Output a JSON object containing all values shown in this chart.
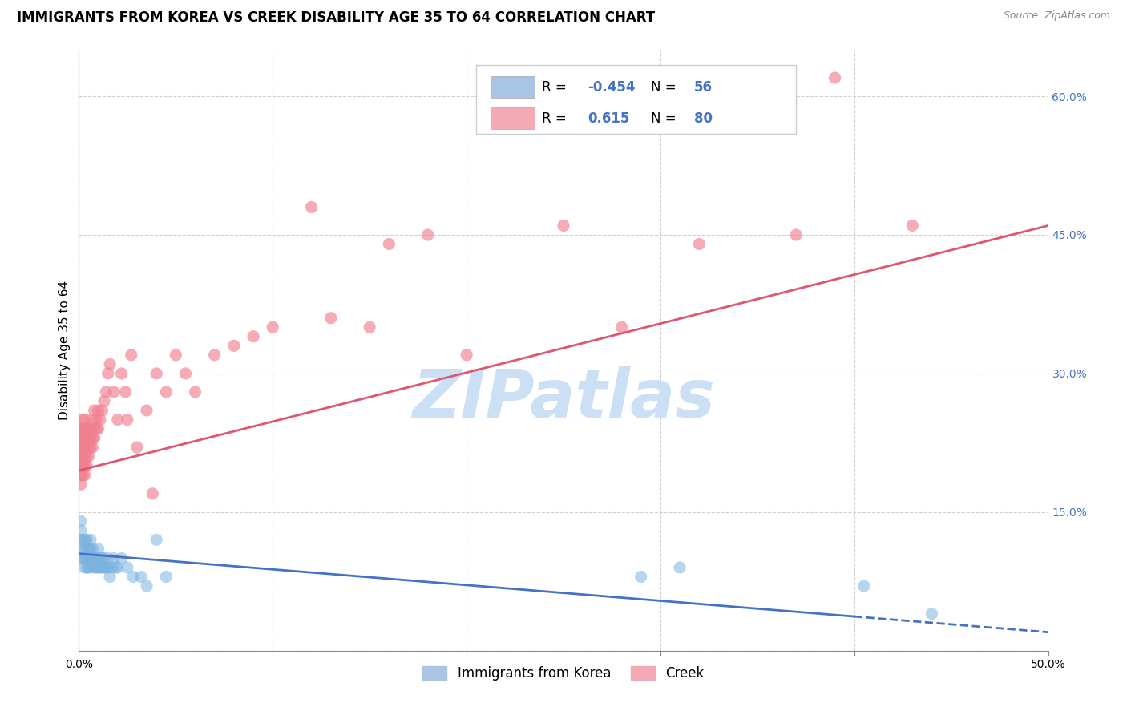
{
  "title": "IMMIGRANTS FROM KOREA VS CREEK DISABILITY AGE 35 TO 64 CORRELATION CHART",
  "source": "Source: ZipAtlas.com",
  "ylabel": "Disability Age 35 to 64",
  "x_ticks": [
    0.0,
    0.1,
    0.2,
    0.3,
    0.4,
    0.5
  ],
  "x_tick_labels": [
    "0.0%",
    "",
    "",
    "",
    "",
    "50.0%"
  ],
  "y_ticks": [
    0.0,
    0.15,
    0.3,
    0.45,
    0.6
  ],
  "y_tick_labels_left": [
    "",
    "",
    "",
    "",
    ""
  ],
  "y_tick_labels_right": [
    "",
    "15.0%",
    "30.0%",
    "45.0%",
    "60.0%"
  ],
  "legend_top": [
    {
      "label": "Immigrants from Korea",
      "color": "#aac4e4",
      "r": "-0.454",
      "n": "56"
    },
    {
      "label": "Creek",
      "color": "#f4aab4",
      "r": "0.615",
      "n": "80"
    }
  ],
  "legend_bottom": [
    "Immigrants from Korea",
    "Creek"
  ],
  "watermark": "ZIPatlas",
  "blue_scatter_x": [
    0.001,
    0.001,
    0.001,
    0.001,
    0.002,
    0.002,
    0.002,
    0.003,
    0.003,
    0.003,
    0.003,
    0.004,
    0.004,
    0.004,
    0.004,
    0.005,
    0.005,
    0.005,
    0.006,
    0.006,
    0.006,
    0.006,
    0.007,
    0.007,
    0.008,
    0.008,
    0.009,
    0.009,
    0.01,
    0.01,
    0.01,
    0.011,
    0.011,
    0.012,
    0.012,
    0.013,
    0.013,
    0.014,
    0.015,
    0.015,
    0.016,
    0.017,
    0.018,
    0.019,
    0.02,
    0.022,
    0.025,
    0.028,
    0.032,
    0.035,
    0.04,
    0.045,
    0.29,
    0.31,
    0.405,
    0.44
  ],
  "blue_scatter_y": [
    0.1,
    0.12,
    0.13,
    0.14,
    0.1,
    0.11,
    0.12,
    0.09,
    0.1,
    0.11,
    0.12,
    0.09,
    0.1,
    0.11,
    0.12,
    0.09,
    0.1,
    0.11,
    0.09,
    0.1,
    0.11,
    0.12,
    0.1,
    0.11,
    0.09,
    0.1,
    0.09,
    0.1,
    0.09,
    0.1,
    0.11,
    0.09,
    0.1,
    0.09,
    0.1,
    0.09,
    0.1,
    0.09,
    0.09,
    0.1,
    0.08,
    0.09,
    0.1,
    0.09,
    0.09,
    0.1,
    0.09,
    0.08,
    0.08,
    0.07,
    0.12,
    0.08,
    0.08,
    0.09,
    0.07,
    0.04
  ],
  "pink_scatter_x": [
    0.001,
    0.001,
    0.001,
    0.001,
    0.001,
    0.001,
    0.001,
    0.001,
    0.002,
    0.002,
    0.002,
    0.002,
    0.002,
    0.002,
    0.002,
    0.003,
    0.003,
    0.003,
    0.003,
    0.003,
    0.003,
    0.003,
    0.004,
    0.004,
    0.004,
    0.004,
    0.004,
    0.005,
    0.005,
    0.005,
    0.005,
    0.006,
    0.006,
    0.006,
    0.007,
    0.007,
    0.007,
    0.008,
    0.008,
    0.008,
    0.009,
    0.009,
    0.01,
    0.01,
    0.011,
    0.012,
    0.013,
    0.014,
    0.015,
    0.016,
    0.018,
    0.02,
    0.022,
    0.024,
    0.025,
    0.027,
    0.03,
    0.035,
    0.038,
    0.04,
    0.045,
    0.05,
    0.055,
    0.06,
    0.07,
    0.08,
    0.09,
    0.1,
    0.12,
    0.13,
    0.15,
    0.16,
    0.18,
    0.2,
    0.25,
    0.28,
    0.32,
    0.37,
    0.39,
    0.43
  ],
  "pink_scatter_y": [
    0.18,
    0.19,
    0.2,
    0.2,
    0.21,
    0.22,
    0.23,
    0.24,
    0.19,
    0.2,
    0.21,
    0.22,
    0.23,
    0.24,
    0.25,
    0.19,
    0.2,
    0.21,
    0.22,
    0.23,
    0.24,
    0.25,
    0.2,
    0.21,
    0.22,
    0.23,
    0.24,
    0.21,
    0.22,
    0.23,
    0.24,
    0.22,
    0.23,
    0.24,
    0.22,
    0.23,
    0.25,
    0.23,
    0.24,
    0.26,
    0.24,
    0.25,
    0.24,
    0.26,
    0.25,
    0.26,
    0.27,
    0.28,
    0.3,
    0.31,
    0.28,
    0.25,
    0.3,
    0.28,
    0.25,
    0.32,
    0.22,
    0.26,
    0.17,
    0.3,
    0.28,
    0.32,
    0.3,
    0.28,
    0.32,
    0.33,
    0.34,
    0.35,
    0.48,
    0.36,
    0.35,
    0.44,
    0.45,
    0.32,
    0.46,
    0.35,
    0.44,
    0.45,
    0.62,
    0.46
  ],
  "blue_line_x": [
    0.0,
    0.5
  ],
  "blue_line_y": [
    0.105,
    0.02
  ],
  "blue_line_solid_end": 0.4,
  "pink_line_x": [
    0.0,
    0.5
  ],
  "pink_line_y": [
    0.195,
    0.46
  ],
  "blue_dot_color": "#7ab3e0",
  "pink_dot_color": "#f08090",
  "blue_line_color": "#4472c4",
  "pink_line_color": "#e05570",
  "grid_color": "#d0d0d0",
  "background_color": "#ffffff",
  "title_fontsize": 12,
  "axis_label_fontsize": 11,
  "tick_fontsize": 10,
  "legend_fontsize": 12,
  "watermark_color": "#cce0f5",
  "watermark_fontsize": 60,
  "xlim": [
    0.0,
    0.5
  ],
  "ylim": [
    0.0,
    0.65
  ]
}
